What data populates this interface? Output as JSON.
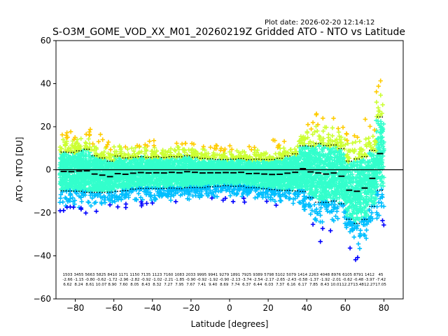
{
  "chart_data": {
    "type": "scatter",
    "plot_date": "Plot date: 2026-02-20 12:14:12",
    "title": "S-O3M_GOME_VOD_XX_M01_20260219Z Gridded ATO - NTO vs Latitude",
    "xlabel": "Latitude [degrees]",
    "ylabel": "ATO - NTO [DU]",
    "xlim": [
      -90,
      90
    ],
    "ylim": [
      -60,
      60
    ],
    "xticks": [
      -80,
      -60,
      -40,
      -20,
      0,
      20,
      40,
      60,
      80
    ],
    "yticks": [
      -60,
      -40,
      -20,
      0,
      20,
      40,
      60
    ],
    "xtick_labels": [
      "−80",
      "−60",
      "−40",
      "−20",
      "0",
      "20",
      "40",
      "60",
      "80"
    ],
    "ytick_labels": [
      "−60",
      "−40",
      "−20",
      "0",
      "20",
      "40",
      "60"
    ],
    "zero_line": 0,
    "colors": {
      "low": "#0000ff",
      "mid_low": "#00bfff",
      "core": "#33ffcc",
      "mid_high": "#ccff33",
      "high": "#ffcc00"
    },
    "bins": [
      {
        "lat": -86,
        "mean": -0.8,
        "sd": 9.0
      },
      {
        "lat": -82,
        "mean": -0.9,
        "sd": 9.0
      },
      {
        "lat": -78,
        "mean": -0.6,
        "sd": 9.4
      },
      {
        "lat": -74,
        "mean": -0.5,
        "sd": 10.0
      },
      {
        "lat": -70,
        "mean": -2.0,
        "sd": 8.5
      },
      {
        "lat": -66,
        "mean": -2.5,
        "sd": 8.0
      },
      {
        "lat": -62,
        "mean": -3.2,
        "sd": 7.2
      },
      {
        "lat": -58,
        "mean": -1.8,
        "sd": 8.2
      },
      {
        "lat": -54,
        "mean": -2.1,
        "sd": 7.6
      },
      {
        "lat": -50,
        "mean": -1.6,
        "sd": 7.4
      },
      {
        "lat": -46,
        "mean": -1.3,
        "sd": 7.4
      },
      {
        "lat": -42,
        "mean": -1.5,
        "sd": 7.2
      },
      {
        "lat": -38,
        "mean": -1.4,
        "sd": 7.4
      },
      {
        "lat": -34,
        "mean": -1.5,
        "sd": 7.2
      },
      {
        "lat": -30,
        "mean": -1.2,
        "sd": 7.3
      },
      {
        "lat": -26,
        "mean": -1.4,
        "sd": 7.4
      },
      {
        "lat": -22,
        "mean": -0.9,
        "sd": 7.4
      },
      {
        "lat": -18,
        "mean": -1.2,
        "sd": 7.0
      },
      {
        "lat": -14,
        "mean": -1.5,
        "sd": 6.8
      },
      {
        "lat": -10,
        "mean": -1.4,
        "sd": 6.5
      },
      {
        "lat": -6,
        "mean": -1.4,
        "sd": 6.2
      },
      {
        "lat": -2,
        "mean": -1.3,
        "sd": 6.1
      },
      {
        "lat": 2,
        "mean": -1.4,
        "sd": 6.3
      },
      {
        "lat": 6,
        "mean": -1.2,
        "sd": 6.4
      },
      {
        "lat": 10,
        "mean": -1.8,
        "sd": 6.5
      },
      {
        "lat": 14,
        "mean": -1.7,
        "sd": 6.6
      },
      {
        "lat": 18,
        "mean": -2.0,
        "sd": 6.8
      },
      {
        "lat": 22,
        "mean": -2.2,
        "sd": 7.0
      },
      {
        "lat": 26,
        "mean": -2.1,
        "sd": 7.4
      },
      {
        "lat": 30,
        "mean": -1.6,
        "sd": 8.0
      },
      {
        "lat": 34,
        "mean": -1.2,
        "sd": 8.6
      },
      {
        "lat": 38,
        "mean": 0.5,
        "sd": 10.6
      },
      {
        "lat": 42,
        "mean": -1.0,
        "sd": 12.0
      },
      {
        "lat": 46,
        "mean": -1.5,
        "sd": 13.6
      },
      {
        "lat": 50,
        "mean": -2.0,
        "sd": 13.2
      },
      {
        "lat": 54,
        "mean": -1.5,
        "sd": 13.0
      },
      {
        "lat": 58,
        "mean": -3.0,
        "sd": 12.8
      },
      {
        "lat": 62,
        "mean": -9.5,
        "sd": 13.5
      },
      {
        "lat": 66,
        "mean": -10.0,
        "sd": 15.0
      },
      {
        "lat": 70,
        "mean": -8.5,
        "sd": 14.6
      },
      {
        "lat": 74,
        "mean": -4.0,
        "sd": 13.0
      },
      {
        "lat": 78,
        "mean": 7.5,
        "sd": 17.0
      }
    ],
    "stat_rows": {
      "counts": [
        "1503",
        "3455",
        "5663",
        "5825",
        "8410",
        "1171",
        "1150",
        "7135",
        "1123",
        "7160",
        "1083",
        "2033",
        "9995",
        "9941",
        "9279",
        "1891",
        "7925",
        "9389",
        "5798",
        "5102",
        "5079",
        "1414",
        "2263",
        "4048",
        "8976",
        "6105",
        "8791",
        "1412",
        "45"
      ],
      "means": [
        "-2.66",
        "-1.15",
        "-0.80",
        "-0.62",
        "-1.72",
        "-2.96",
        "-2.82",
        "-0.92",
        "-1.02",
        "-2.21",
        "-1.85",
        "-0.90",
        "-0.92",
        "-1.92",
        "-0.90",
        "-2.13",
        "-3.74",
        "-2.54",
        "-2.17",
        "-2.65",
        "-2.43",
        "-0.58",
        "-1.37",
        "-1.92",
        "-2.01",
        "-0.62",
        "-0.48",
        "-3.97",
        "-7.42"
      ],
      "sds": [
        "6.62",
        "8.24",
        "8.61",
        "10.07",
        "8.90",
        "7.60",
        "8.05",
        "8.43",
        "8.32",
        "7.27",
        "7.95",
        "7.67",
        "7.41",
        "9.40",
        "8.69",
        "7.74",
        "6.37",
        "6.44",
        "6.03",
        "7.37",
        "6.16",
        "6.17",
        "7.85",
        "8.43",
        "10.01",
        "12.27",
        "13.48",
        "12.27",
        "17.05"
      ]
    }
  }
}
